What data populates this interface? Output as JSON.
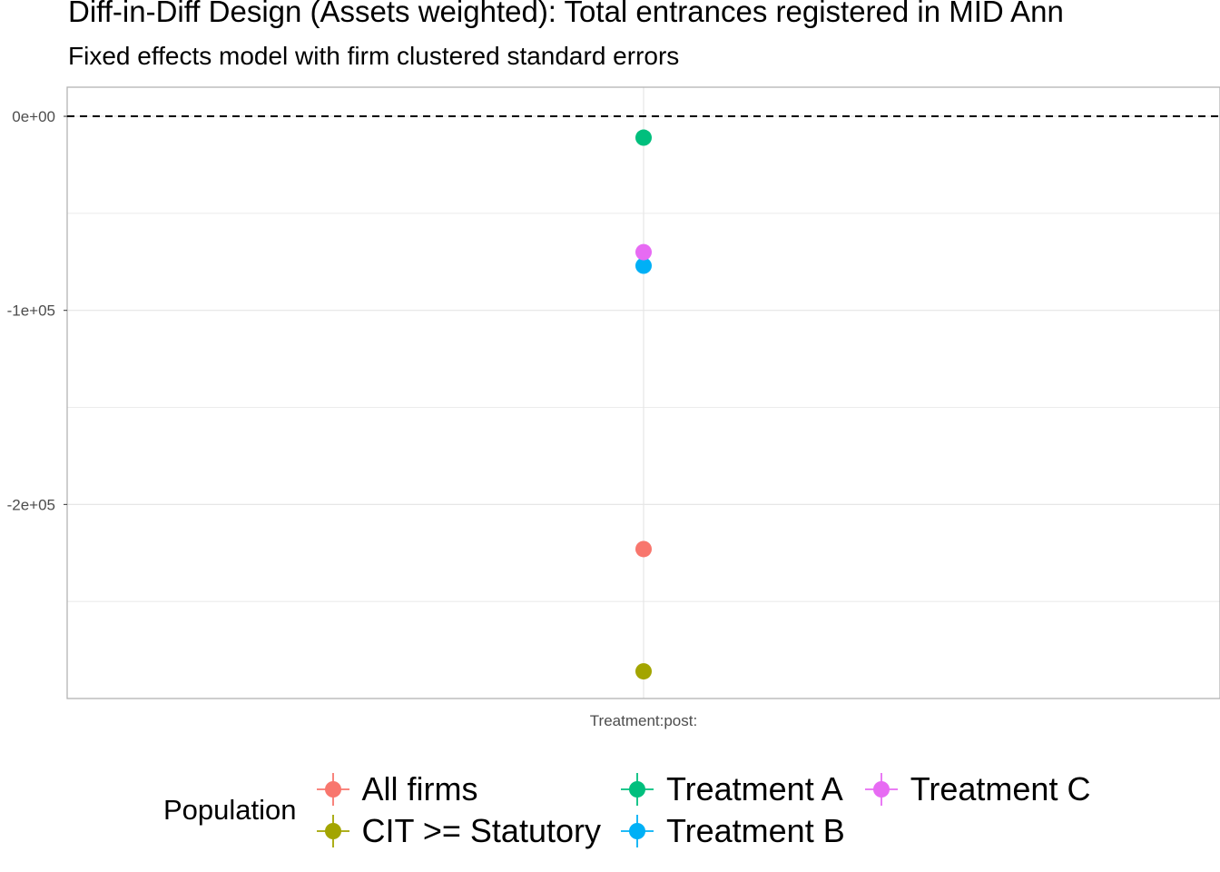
{
  "chart_data": {
    "type": "scatter",
    "title": "Diff-in-Diff Design (Assets weighted): Total entrances registered in MID Ann",
    "subtitle": "Fixed effects model with firm clustered standard errors",
    "xlabel": "",
    "ylabel": "",
    "categories": [
      "Treatment:post:"
    ],
    "ylim": [
      -300000,
      15000
    ],
    "y_ticks": [
      0,
      -100000,
      -200000
    ],
    "y_tick_labels": [
      "0e+00",
      "-1e+05",
      "-2e+05"
    ],
    "reference_line": {
      "y": 0,
      "style": "dashed"
    },
    "grid": true,
    "legend_title": "Population",
    "legend_position": "bottom",
    "series": [
      {
        "name": "All firms",
        "color": "#F8766D",
        "values": [
          -223000
        ]
      },
      {
        "name": "CIT >= Statutory",
        "color": "#A3A500",
        "values": [
          -286000
        ]
      },
      {
        "name": "Treatment A",
        "color": "#00BF7D",
        "values": [
          -11000
        ]
      },
      {
        "name": "Treatment B",
        "color": "#00B0F6",
        "values": [
          -77000
        ]
      },
      {
        "name": "Treatment C",
        "color": "#E76BF3",
        "values": [
          -70000
        ]
      }
    ]
  }
}
